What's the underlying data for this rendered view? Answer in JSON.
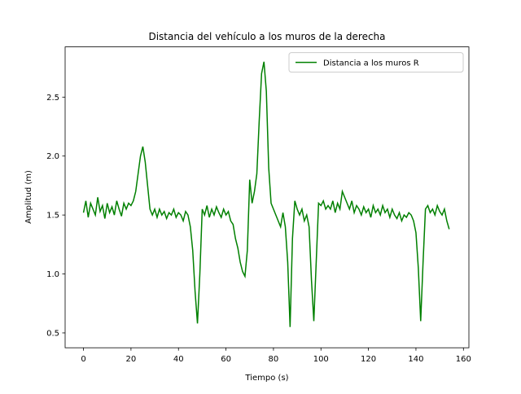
{
  "chart_data": {
    "type": "line",
    "title": "Distancia del vehículo a los muros de la derecha",
    "x_label": "Tiempo (s)",
    "y_label": "Amplitud (m)",
    "legend_position": "upper right",
    "grid": false,
    "xlim": [
      -7.73,
      162.3
    ],
    "ylim": [
      0.374,
      2.926
    ],
    "xticks": [
      0,
      20,
      40,
      60,
      80,
      100,
      120,
      140,
      160
    ],
    "yticks": [
      0.5,
      {
        "value": 1,
        "label": "1.0"
      },
      1.5,
      {
        "value": 2,
        "label": "2.0"
      },
      2.5
    ],
    "x": [
      0,
      1,
      2,
      3,
      4,
      5,
      6,
      7,
      8,
      9,
      10,
      11,
      12,
      13,
      14,
      15,
      16,
      17,
      18,
      19,
      20,
      21,
      22,
      23,
      24,
      25,
      26,
      27,
      28,
      29,
      30,
      31,
      32,
      33,
      34,
      35,
      36,
      37,
      38,
      39,
      40,
      41,
      42,
      43,
      44,
      45,
      46,
      47,
      48,
      49,
      50,
      51,
      52,
      53,
      54,
      55,
      56,
      57,
      58,
      59,
      60,
      61,
      62,
      63,
      64,
      65,
      66,
      67,
      68,
      69,
      70,
      71,
      72,
      73,
      74,
      75,
      76,
      77,
      78,
      79,
      80,
      81,
      82,
      83,
      84,
      85,
      86,
      87,
      88,
      89,
      90,
      91,
      92,
      93,
      94,
      95,
      96,
      97,
      98,
      99,
      100,
      101,
      102,
      103,
      104,
      105,
      106,
      107,
      108,
      109,
      110,
      111,
      112,
      113,
      114,
      115,
      116,
      117,
      118,
      119,
      120,
      121,
      122,
      123,
      124,
      125,
      126,
      127,
      128,
      129,
      130,
      131,
      132,
      133,
      134,
      135,
      136,
      137,
      138,
      139,
      140,
      141,
      142,
      143,
      144,
      145,
      146,
      147,
      148,
      149,
      150,
      151,
      152,
      153,
      154
    ],
    "series": [
      {
        "name": "Distancia a los muros R",
        "color": "#008000",
        "values": [
          1.52,
          1.62,
          1.48,
          1.6,
          1.55,
          1.5,
          1.65,
          1.53,
          1.58,
          1.47,
          1.6,
          1.52,
          1.57,
          1.5,
          1.62,
          1.55,
          1.49,
          1.6,
          1.55,
          1.6,
          1.58,
          1.62,
          1.7,
          1.85,
          2.0,
          2.08,
          1.95,
          1.75,
          1.55,
          1.5,
          1.55,
          1.48,
          1.55,
          1.5,
          1.53,
          1.47,
          1.52,
          1.5,
          1.55,
          1.48,
          1.52,
          1.5,
          1.45,
          1.53,
          1.5,
          1.4,
          1.2,
          0.85,
          0.58,
          1.0,
          1.55,
          1.5,
          1.58,
          1.48,
          1.55,
          1.5,
          1.57,
          1.52,
          1.48,
          1.55,
          1.5,
          1.53,
          1.45,
          1.42,
          1.3,
          1.22,
          1.1,
          1.02,
          0.98,
          1.2,
          1.8,
          1.6,
          1.7,
          1.85,
          2.3,
          2.7,
          2.8,
          2.55,
          1.9,
          1.6,
          1.55,
          1.5,
          1.45,
          1.4,
          1.52,
          1.4,
          1.1,
          0.55,
          1.3,
          1.62,
          1.55,
          1.5,
          1.55,
          1.45,
          1.5,
          1.4,
          0.95,
          0.6,
          1.1,
          1.6,
          1.58,
          1.62,
          1.55,
          1.58,
          1.55,
          1.62,
          1.52,
          1.6,
          1.55,
          1.7,
          1.65,
          1.6,
          1.55,
          1.62,
          1.52,
          1.58,
          1.55,
          1.5,
          1.57,
          1.52,
          1.55,
          1.48,
          1.58,
          1.52,
          1.55,
          1.5,
          1.58,
          1.52,
          1.55,
          1.48,
          1.55,
          1.5,
          1.47,
          1.52,
          1.45,
          1.5,
          1.48,
          1.52,
          1.5,
          1.45,
          1.35,
          1.05,
          0.6,
          1.1,
          1.55,
          1.58,
          1.52,
          1.55,
          1.5,
          1.58,
          1.53,
          1.5,
          1.55,
          1.45,
          1.38
        ]
      }
    ]
  }
}
